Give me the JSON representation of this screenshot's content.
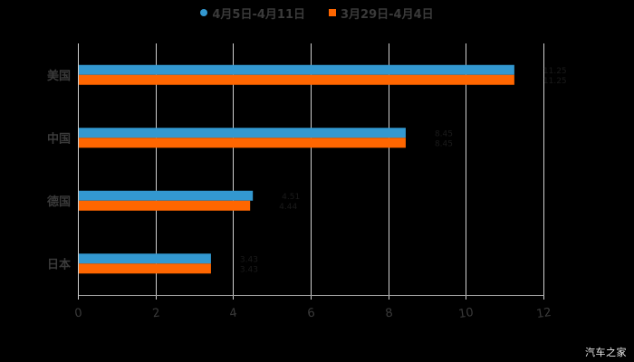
{
  "legend": {
    "items": [
      {
        "label": "4月5日-4月11日",
        "color": "#3398D0",
        "marker": "circle"
      },
      {
        "label": "3月29日-4月4日",
        "color": "#FF6600",
        "marker": "square"
      }
    ]
  },
  "watermark": "汽车之家",
  "colors": {
    "background": "#000000",
    "gridline": "#d0d0d0",
    "axis_text": "#3a3a3a",
    "data_label": "#1a1a1a"
  },
  "chart_data": {
    "type": "bar",
    "orientation": "horizontal",
    "title": "",
    "xlabel": "",
    "ylabel": "",
    "categories": [
      "美国",
      "中国",
      "德国",
      "日本"
    ],
    "series": [
      {
        "name": "4月5日-4月11日",
        "color": "#3398D0",
        "values": [
          11.25,
          8.45,
          4.51,
          3.43
        ]
      },
      {
        "name": "3月29日-4月4日",
        "color": "#FF6600",
        "values": [
          11.25,
          8.45,
          4.44,
          3.43
        ]
      }
    ],
    "xlim": [
      0,
      12
    ],
    "x_ticks": [
      0,
      2,
      4,
      6,
      8,
      10,
      12
    ],
    "grid": true,
    "legend_position": "top"
  }
}
